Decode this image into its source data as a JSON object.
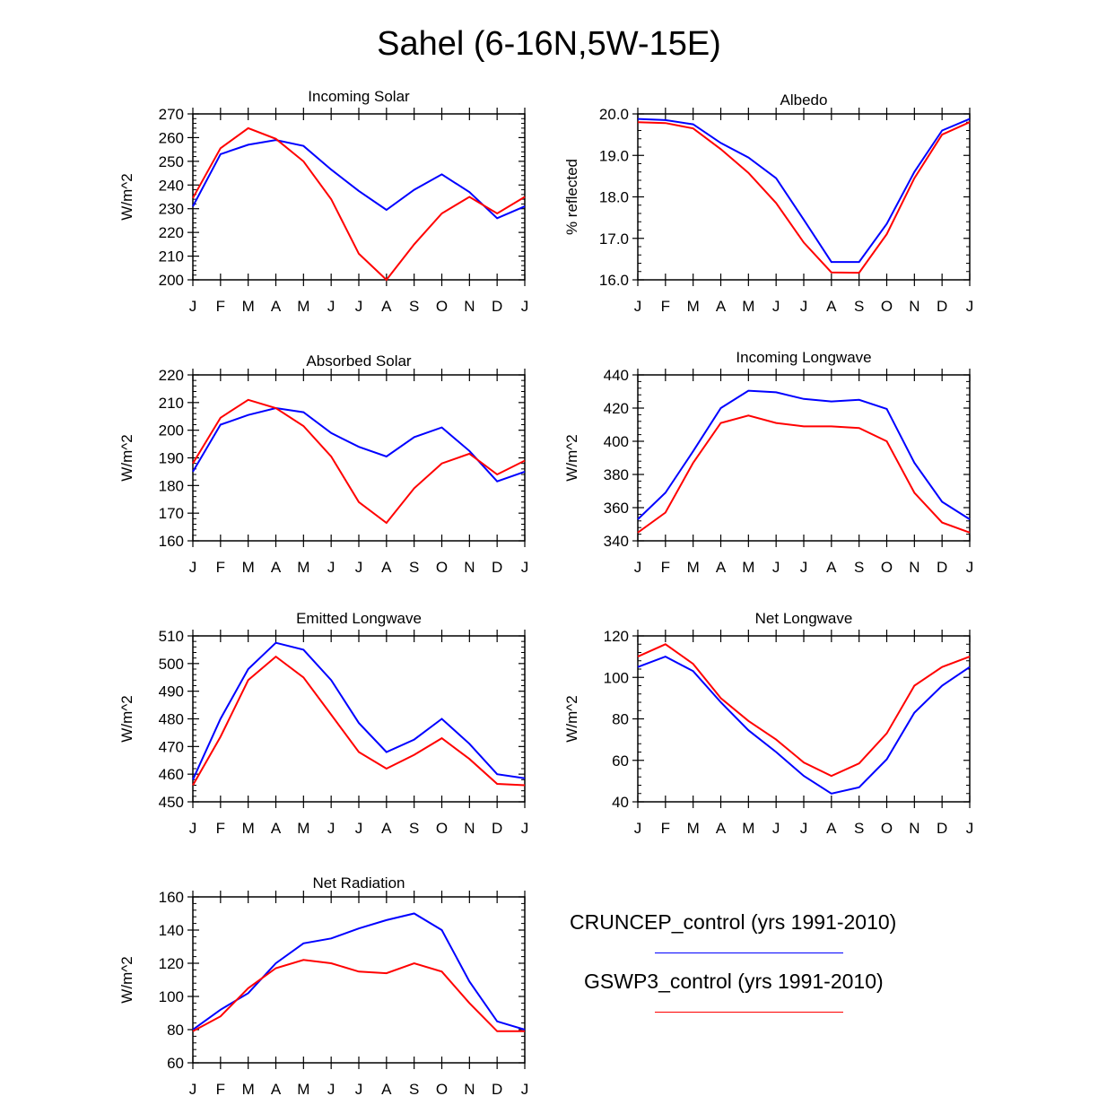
{
  "title": "Sahel (6-16N,5W-15E)",
  "colors": {
    "cruncep": "#0000ff",
    "gswp3": "#ff0000"
  },
  "legend": [
    {
      "label": "CRUNCEP_control (yrs 1991-2010)",
      "color": "#0000ff"
    },
    {
      "label": "GSWP3_control (yrs 1991-2010)",
      "color": "#ff0000"
    }
  ],
  "chart_data": [
    {
      "type": "line",
      "title": "Incoming Solar",
      "ylabel": "W/m^2",
      "categories": [
        "J",
        "F",
        "M",
        "A",
        "M",
        "J",
        "J",
        "A",
        "S",
        "O",
        "N",
        "D",
        "J"
      ],
      "ylim": [
        200,
        270
      ],
      "yticks": [
        "200",
        "210",
        "220",
        "230",
        "240",
        "250",
        "260",
        "270"
      ],
      "series": [
        {
          "name": "CRUNCEP_control (yrs 1991-2010)",
          "values": [
            231,
            253,
            257,
            259,
            256.5,
            246.5,
            237.5,
            229.5,
            238,
            244.5,
            237,
            226,
            231
          ]
        },
        {
          "name": "GSWP3_control (yrs 1991-2010)",
          "values": [
            234.5,
            255.5,
            264,
            259.5,
            250,
            234,
            211,
            200,
            215,
            228,
            235,
            228,
            235
          ]
        }
      ]
    },
    {
      "type": "line",
      "title": "Albedo",
      "ylabel": "% reflected",
      "categories": [
        "J",
        "F",
        "M",
        "A",
        "M",
        "J",
        "J",
        "A",
        "S",
        "O",
        "N",
        "D",
        "J"
      ],
      "ylim": [
        16,
        20
      ],
      "yticks": [
        "16.0",
        "17.0",
        "18.0",
        "19.0",
        "20.0"
      ],
      "series": [
        {
          "name": "CRUNCEP_control (yrs 1991-2010)",
          "values": [
            19.88,
            19.85,
            19.75,
            19.3,
            18.95,
            18.45,
            17.45,
            16.43,
            16.43,
            17.35,
            18.6,
            19.6,
            19.88
          ]
        },
        {
          "name": "GSWP3_control (yrs 1991-2010)",
          "values": [
            19.8,
            19.78,
            19.65,
            19.15,
            18.58,
            17.85,
            16.9,
            16.18,
            16.17,
            17.1,
            18.45,
            19.5,
            19.8
          ]
        }
      ]
    },
    {
      "type": "line",
      "title": "Absorbed Solar",
      "ylabel": "W/m^2",
      "categories": [
        "J",
        "F",
        "M",
        "A",
        "M",
        "J",
        "J",
        "A",
        "S",
        "O",
        "N",
        "D",
        "J"
      ],
      "ylim": [
        160,
        220
      ],
      "yticks": [
        "160",
        "170",
        "180",
        "190",
        "200",
        "210",
        "220"
      ],
      "series": [
        {
          "name": "CRUNCEP_control (yrs 1991-2010)",
          "values": [
            185,
            202,
            205.5,
            208,
            206.5,
            199,
            194,
            190.5,
            197.5,
            201,
            192.5,
            181.5,
            185
          ]
        },
        {
          "name": "GSWP3_control (yrs 1991-2010)",
          "values": [
            188,
            204.5,
            211,
            208,
            201.5,
            190.5,
            174,
            166.5,
            179,
            188,
            191.5,
            184,
            189
          ]
        }
      ]
    },
    {
      "type": "line",
      "title": "Incoming Longwave",
      "ylabel": "W/m^2",
      "categories": [
        "J",
        "F",
        "M",
        "A",
        "M",
        "J",
        "J",
        "A",
        "S",
        "O",
        "N",
        "D",
        "J"
      ],
      "ylim": [
        340,
        440
      ],
      "yticks": [
        "340",
        "360",
        "380",
        "400",
        "420",
        "440"
      ],
      "series": [
        {
          "name": "CRUNCEP_control (yrs 1991-2010)",
          "values": [
            353,
            369,
            394,
            420,
            430.5,
            429.5,
            425.5,
            424,
            425,
            419.5,
            387,
            363.5,
            353
          ]
        },
        {
          "name": "GSWP3_control (yrs 1991-2010)",
          "values": [
            345,
            357,
            387,
            411,
            415.5,
            411,
            409,
            409,
            408,
            400,
            369,
            351,
            345
          ]
        }
      ]
    },
    {
      "type": "line",
      "title": "Emitted Longwave",
      "ylabel": "W/m^2",
      "categories": [
        "J",
        "F",
        "M",
        "A",
        "M",
        "J",
        "J",
        "A",
        "S",
        "O",
        "N",
        "D",
        "J"
      ],
      "ylim": [
        450,
        510
      ],
      "yticks": [
        "450",
        "460",
        "470",
        "480",
        "490",
        "500",
        "510"
      ],
      "series": [
        {
          "name": "CRUNCEP_control (yrs 1991-2010)",
          "values": [
            458,
            480,
            498,
            507.5,
            505,
            494,
            478.5,
            468,
            472.5,
            480,
            471,
            460,
            458.5
          ]
        },
        {
          "name": "GSWP3_control (yrs 1991-2010)",
          "values": [
            456,
            473.5,
            494,
            502.5,
            495,
            481.5,
            468,
            462,
            467,
            473,
            465.5,
            456.5,
            456
          ]
        }
      ]
    },
    {
      "type": "line",
      "title": "Net Longwave",
      "ylabel": "W/m^2",
      "categories": [
        "J",
        "F",
        "M",
        "A",
        "M",
        "J",
        "J",
        "A",
        "S",
        "O",
        "N",
        "D",
        "J"
      ],
      "ylim": [
        40,
        120
      ],
      "yticks": [
        "40",
        "60",
        "80",
        "100",
        "120"
      ],
      "series": [
        {
          "name": "CRUNCEP_control (yrs 1991-2010)",
          "values": [
            105,
            110,
            103,
            88,
            74.5,
            64,
            52.5,
            44,
            47,
            60.5,
            83,
            96,
            105
          ]
        },
        {
          "name": "GSWP3_control (yrs 1991-2010)",
          "values": [
            110,
            116,
            106.5,
            90,
            79,
            70,
            59,
            52.5,
            58.5,
            73,
            96,
            105,
            110
          ]
        }
      ]
    },
    {
      "type": "line",
      "title": "Net Radiation",
      "ylabel": "W/m^2",
      "categories": [
        "J",
        "F",
        "M",
        "A",
        "M",
        "J",
        "J",
        "A",
        "S",
        "O",
        "N",
        "D",
        "J"
      ],
      "ylim": [
        60,
        160
      ],
      "yticks": [
        "60",
        "80",
        "100",
        "120",
        "140",
        "160"
      ],
      "series": [
        {
          "name": "CRUNCEP_control (yrs 1991-2010)",
          "values": [
            80,
            92,
            102,
            120,
            132,
            135,
            141,
            146,
            150,
            140,
            109,
            85,
            80
          ]
        },
        {
          "name": "GSWP3_control (yrs 1991-2010)",
          "values": [
            79,
            88,
            105,
            117,
            122,
            120,
            115,
            114,
            120,
            115,
            96,
            79,
            79
          ]
        }
      ]
    }
  ]
}
